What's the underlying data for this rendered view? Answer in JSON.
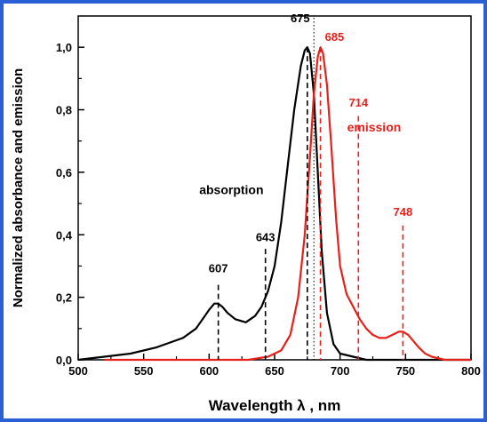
{
  "chart_data": {
    "type": "line",
    "xlabel": "Wavelength λ , nm",
    "ylabel": "Normalized absorbance and emission",
    "xlim": [
      500,
      800
    ],
    "ylim": [
      0,
      1.1
    ],
    "x_ticks": [
      "500",
      "550",
      "600",
      "650",
      "700",
      "750",
      "800"
    ],
    "y_ticks": [
      "0,0",
      "0,2",
      "0,4",
      "0,6",
      "0,8",
      "1,0"
    ],
    "grid": false,
    "series": [
      {
        "name": "absorption",
        "color": "#000000",
        "x": [
          500,
          520,
          540,
          560,
          580,
          590,
          595,
          600,
          604,
          607,
          610,
          614,
          620,
          628,
          635,
          640,
          645,
          650,
          655,
          660,
          665,
          670,
          673,
          675,
          677,
          680,
          683,
          686,
          690,
          695,
          700,
          710,
          720,
          740,
          760,
          800
        ],
        "values": [
          0.0,
          0.01,
          0.02,
          0.04,
          0.07,
          0.1,
          0.13,
          0.16,
          0.18,
          0.18,
          0.17,
          0.15,
          0.13,
          0.12,
          0.14,
          0.17,
          0.22,
          0.3,
          0.44,
          0.62,
          0.8,
          0.94,
          0.99,
          1.0,
          0.98,
          0.85,
          0.6,
          0.35,
          0.15,
          0.05,
          0.02,
          0.01,
          0.0,
          0.0,
          0.0,
          0.0
        ]
      },
      {
        "name": "emission",
        "color": "#e8201a",
        "x": [
          520,
          600,
          630,
          645,
          655,
          662,
          668,
          673,
          677,
          680,
          683,
          685,
          687,
          690,
          693,
          697,
          700,
          705,
          710,
          715,
          720,
          725,
          730,
          735,
          740,
          745,
          748,
          752,
          756,
          760,
          765,
          770,
          780,
          790,
          800
        ],
        "values": [
          0.0,
          0.0,
          0.0,
          0.01,
          0.03,
          0.08,
          0.2,
          0.4,
          0.65,
          0.85,
          0.97,
          1.0,
          0.98,
          0.88,
          0.7,
          0.45,
          0.3,
          0.21,
          0.17,
          0.13,
          0.1,
          0.08,
          0.07,
          0.07,
          0.08,
          0.09,
          0.09,
          0.08,
          0.06,
          0.04,
          0.02,
          0.01,
          0.0,
          0.0,
          0.0
        ]
      }
    ],
    "annotations": [
      {
        "text": "607",
        "x": 607,
        "label_y": 0.28,
        "line_top": 0.24,
        "color": "#000000"
      },
      {
        "text": "643",
        "x": 643,
        "label_y": 0.38,
        "line_top": 0.355,
        "color": "#000000"
      },
      {
        "text": "675",
        "x": 675,
        "label_y": 1.08,
        "line_top": 1.0,
        "color": "#000000"
      },
      {
        "text": "685",
        "x": 685,
        "label_y": 1.02,
        "line_top": 1.0,
        "color": "#e8201a"
      },
      {
        "text": "714",
        "x": 714,
        "label_y": 0.81,
        "line_top": 0.78,
        "color": "#e8201a"
      },
      {
        "text": "748",
        "x": 748,
        "label_y": 0.46,
        "line_top": 0.43,
        "color": "#e8201a"
      }
    ],
    "series_labels": [
      {
        "text": "absorption",
        "x": 617,
        "y": 0.53,
        "color": "#000000"
      },
      {
        "text": "emission",
        "x": 726,
        "y": 0.73,
        "color": "#e8201a"
      }
    ],
    "divider_x": 680
  }
}
